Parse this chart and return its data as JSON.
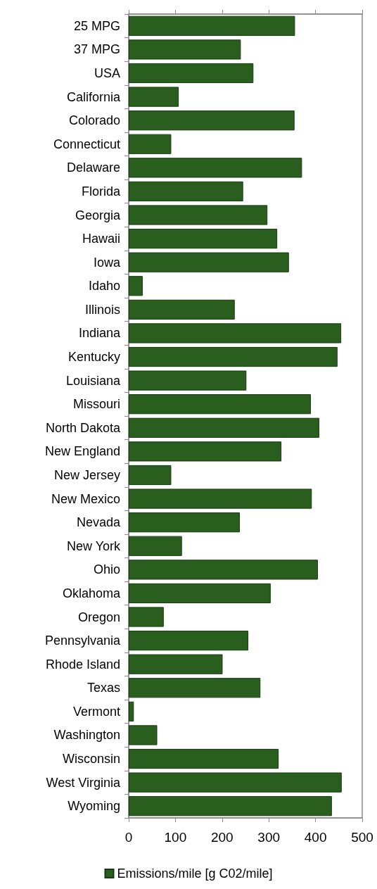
{
  "chart_data": {
    "type": "bar",
    "orientation": "horizontal",
    "categories": [
      "25 MPG",
      "37 MPG",
      "USA",
      "California",
      "Colorado",
      "Connecticut",
      "Delaware",
      "Florida",
      "Georgia",
      "Hawaii",
      "Iowa",
      "Idaho",
      "Illinois",
      "Indiana",
      "Kentucky",
      "Louisiana",
      "Missouri",
      "North Dakota",
      "New England",
      "New Jersey",
      "New Mexico",
      "Nevada",
      "New York",
      "Ohio",
      "Oklahoma",
      "Oregon",
      "Pennsylvania",
      "Rhode Island",
      "Texas",
      "Vermont",
      "Washington",
      "Wisconsin",
      "West Virginia",
      "Wyoming"
    ],
    "series": [
      {
        "name": "Emissions/mile [g C02/mile]",
        "color": "#2a5e1e",
        "values": [
          356,
          240,
          267,
          107,
          355,
          91,
          371,
          245,
          297,
          318,
          343,
          30,
          227,
          455,
          447,
          252,
          390,
          408,
          327,
          91,
          392,
          238,
          114,
          405,
          304,
          75,
          256,
          201,
          282,
          11,
          61,
          321,
          456,
          435
        ]
      }
    ],
    "xlim": [
      0,
      500
    ],
    "xticks": [
      0,
      100,
      200,
      300,
      400,
      500
    ],
    "grid": false,
    "legend": "bottom"
  }
}
